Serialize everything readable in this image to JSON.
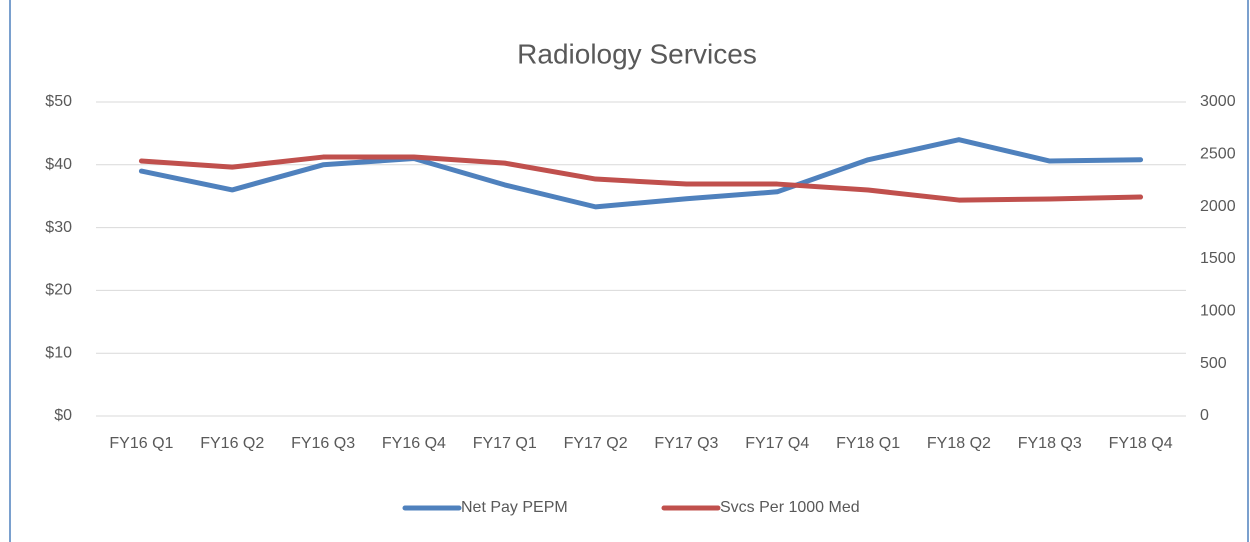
{
  "chart_data": {
    "type": "line",
    "title": "Radiology Services",
    "categories": [
      "FY16 Q1",
      "FY16 Q2",
      "FY16 Q3",
      "FY16 Q4",
      "FY17 Q1",
      "FY17 Q2",
      "FY17 Q3",
      "FY17 Q4",
      "FY18 Q1",
      "FY18 Q2",
      "FY18 Q3",
      "FY18 Q4"
    ],
    "series": [
      {
        "name": "Net Pay PEPM",
        "color": "#4f81bd",
        "values": [
          39.0,
          36.0,
          40.0,
          41.0,
          36.8,
          33.3,
          34.6,
          35.7,
          40.8,
          44.0,
          40.6,
          40.8
        ]
      },
      {
        "name": "Svcs Per 1000 Med",
        "color": "#c0504d",
        "axis": "y2",
        "values": [
          2436,
          2378,
          2474,
          2474,
          2416,
          2264,
          2216,
          2216,
          2159,
          2063,
          2073,
          2092
        ]
      }
    ],
    "ylim": [
      0,
      50
    ],
    "yticks": [
      {
        "value": 0,
        "label": "$0"
      },
      {
        "value": 10,
        "label": "$10"
      },
      {
        "value": 20,
        "label": "$20"
      },
      {
        "value": 30,
        "label": "$30"
      },
      {
        "value": 40,
        "label": "$40"
      },
      {
        "value": 50,
        "label": "$50"
      }
    ],
    "y2lim": [
      0,
      3000
    ],
    "y2ticks": [
      0,
      500,
      1000,
      1500,
      2000,
      2500,
      3000
    ],
    "grid": true,
    "legend": "bottom"
  }
}
